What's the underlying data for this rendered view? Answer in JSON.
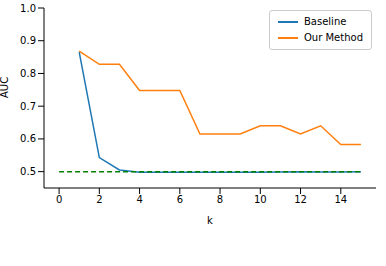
{
  "chart_data": {
    "type": "line",
    "x_label": "k",
    "y_label": "AUC",
    "x": [
      0,
      1,
      2,
      3,
      4,
      5,
      6,
      7,
      8,
      9,
      10,
      11,
      12,
      13,
      14,
      15
    ],
    "series": [
      {
        "name": "Baseline",
        "color": "#1f77b4",
        "values": [
          null,
          0.865,
          0.543,
          0.505,
          0.498,
          0.498,
          0.498,
          0.498,
          0.498,
          0.498,
          0.498,
          0.499,
          0.5,
          0.499,
          0.499,
          0.5
        ]
      },
      {
        "name": "Our Method",
        "color": "#ff7f0e",
        "values": [
          null,
          0.868,
          0.828,
          0.828,
          0.748,
          0.748,
          0.748,
          0.615,
          0.615,
          0.615,
          0.64,
          0.64,
          0.615,
          0.64,
          0.583,
          0.583
        ]
      },
      {
        "color": "green",
        "line_style": "dashed",
        "values": [
          0.5,
          0.5,
          0.5,
          0.5,
          0.5,
          0.5,
          0.5,
          0.5,
          0.5,
          0.5,
          0.5,
          0.5,
          0.5,
          0.5,
          0.5,
          0.5
        ]
      }
    ],
    "xlim": [
      -0.75,
      15.75
    ],
    "xticks": [
      0,
      2,
      4,
      6,
      8,
      10,
      12,
      14
    ],
    "ylim": [
      0.45,
      1.0
    ],
    "yticks": [
      0.5,
      0.6,
      0.7,
      0.8,
      0.9,
      {
        "value": 1,
        "label": "1.0"
      }
    ],
    "legend": "upper right"
  }
}
